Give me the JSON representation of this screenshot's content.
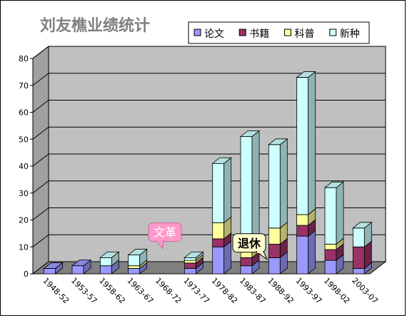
{
  "chart_data": {
    "type": "bar",
    "stacked": true,
    "three_d": true,
    "title": "刘友樵业绩统计",
    "categories": [
      "1948-52",
      "1953-57",
      "1958-62",
      "1963-67",
      "1968-72",
      "1973-77",
      "1978-82",
      "1983-87",
      "1988-92",
      "1993-97",
      "1998-02",
      "2003-07"
    ],
    "series": [
      {
        "name": "论文",
        "color": "#9999ff",
        "values": [
          2,
          3,
          3,
          2,
          0,
          2,
          10,
          3,
          6,
          14,
          5,
          2
        ]
      },
      {
        "name": "书籍",
        "color": "#993366",
        "values": [
          0,
          0,
          0,
          0,
          0,
          2,
          3,
          3,
          5,
          4,
          4,
          8
        ]
      },
      {
        "name": "科普",
        "color": "#ffff99",
        "values": [
          0,
          0,
          0,
          1,
          0,
          1,
          6,
          4,
          6,
          4,
          2,
          0
        ]
      },
      {
        "name": "新种",
        "color": "#ccffff",
        "values": [
          0,
          0,
          3,
          4,
          0,
          1,
          22,
          41,
          31,
          51,
          21,
          7
        ]
      }
    ],
    "ylim": [
      0,
      80
    ],
    "yticks": [
      0,
      10,
      20,
      30,
      40,
      50,
      60,
      70,
      80
    ],
    "grid": true,
    "legend_position": "top-right",
    "wall_color": "#c0c0c0",
    "floor_color": "#808080",
    "annotations": [
      {
        "text": "文革",
        "category": "1968-72",
        "value": 12,
        "style": "pink-callout"
      },
      {
        "text": "退休",
        "category": "1983-87",
        "value": 8,
        "style": "yellow-callout"
      }
    ]
  }
}
